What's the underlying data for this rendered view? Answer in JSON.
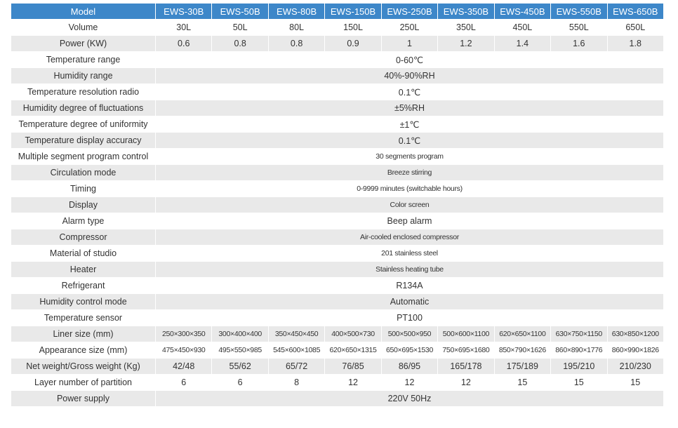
{
  "table": {
    "header": [
      "Model",
      "EWS-30B",
      "EWS-50B",
      "EWS-80B",
      "EWS-150B",
      "EWS-250B",
      "EWS-350B",
      "EWS-450B",
      "EWS-550B",
      "EWS-650B"
    ],
    "rows": [
      [
        "Volume",
        "30L",
        "50L",
        "80L",
        "150L",
        "250L",
        "350L",
        "450L",
        "550L",
        "650L"
      ],
      [
        "Power (KW)",
        "0.6",
        "0.8",
        "0.8",
        "0.9",
        "1",
        "1.2",
        "1.4",
        "1.6",
        "1.8"
      ],
      [
        "Temperature range",
        "0-60℃"
      ],
      [
        "Humidity range",
        "40%-90%RH"
      ],
      [
        "Temperature resolution radio",
        "0.1℃"
      ],
      [
        "Humidity degree of fluctuations",
        "±5%RH"
      ],
      [
        "Temperature degree of uniformity",
        "±1℃"
      ],
      [
        "Temperature display accuracy",
        "0.1℃"
      ],
      [
        "Multiple segment program control",
        "30 segments program"
      ],
      [
        "Circulation mode",
        "Breeze stirring"
      ],
      [
        "Timing",
        "0-9999 minutes (switchable hours)"
      ],
      [
        "Display",
        "Color screen"
      ],
      [
        "Alarm type",
        "Beep alarm"
      ],
      [
        "Compressor",
        "Air-cooled enclosed compressor"
      ],
      [
        "Material of studio",
        "201 stainless steel"
      ],
      [
        "Heater",
        "Stainless heating tube"
      ],
      [
        "Refrigerant",
        "R134A"
      ],
      [
        "Humidity control mode",
        "Automatic"
      ],
      [
        "Temperature sensor",
        "PT100"
      ],
      [
        "Liner size (mm)",
        "250×300×350",
        "300×400×400",
        "350×450×450",
        "400×500×730",
        "500×500×950",
        "500×600×1100",
        "620×650×1100",
        "630×750×1150",
        "630×850×1200"
      ],
      [
        "Appearance size (mm)",
        "475×450×930",
        "495×550×985",
        "545×600×1085",
        "620×650×1315",
        "650×695×1530",
        "750×695×1680",
        "850×790×1626",
        "860×890×1776",
        "860×990×1826"
      ],
      [
        "Net weight/Gross weight (Kg)",
        "42/48",
        "55/62",
        "65/72",
        "76/85",
        "86/95",
        "165/178",
        "175/189",
        "195/210",
        "210/230"
      ],
      [
        "Layer number of partition",
        "6",
        "6",
        "8",
        "12",
        "12",
        "12",
        "15",
        "15",
        "15"
      ],
      [
        "Power supply",
        "220V 50Hz"
      ]
    ]
  }
}
